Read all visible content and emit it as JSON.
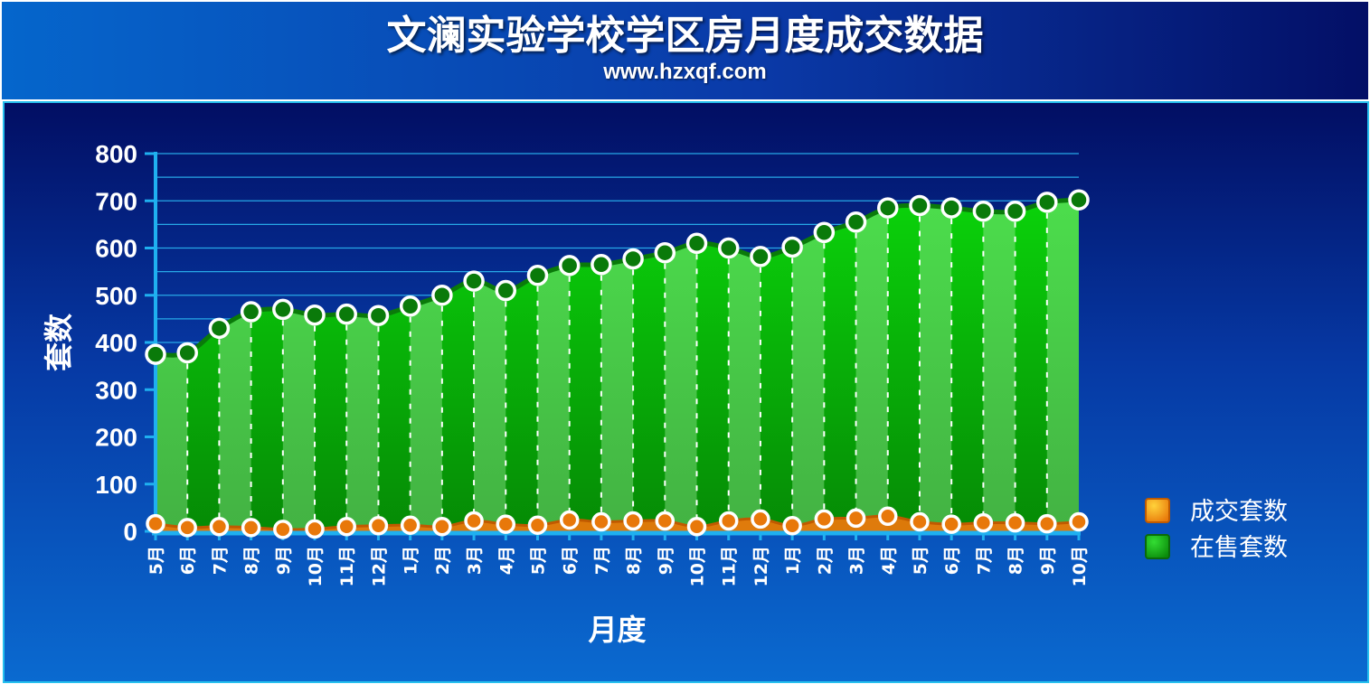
{
  "header": {
    "title": "文澜实验学校学区房月度成交数据",
    "subtitle": "www.hzxqf.com"
  },
  "colors": {
    "header_left": "#0566cc",
    "header_right": "#030f66",
    "frame_border": "#27c0ee",
    "grid": "#27a8e6",
    "area_green": "#14c814",
    "area_green_light": "#55ee55",
    "line_dark_green": "#0a7a0a",
    "sold_orange": "#e8780a",
    "text": "#ffffff"
  },
  "chart_data": {
    "type": "area",
    "xlabel": "月度",
    "ylabel": "套数",
    "ylim": [
      0,
      800
    ],
    "yticks": [
      0,
      100,
      200,
      300,
      400,
      500,
      600,
      700,
      800
    ],
    "grid": true,
    "legend_position": "right",
    "categories": [
      "5月",
      "6月",
      "7月",
      "8月",
      "9月",
      "10月",
      "11月",
      "12月",
      "1月",
      "2月",
      "3月",
      "4月",
      "5月",
      "6月",
      "7月",
      "8月",
      "9月",
      "10月",
      "11月",
      "12月",
      "1月",
      "2月",
      "3月",
      "4月",
      "5月",
      "6月",
      "7月",
      "8月",
      "9月",
      "10月"
    ],
    "series": [
      {
        "name": "成交套数",
        "color": "#e8780a",
        "values": [
          16,
          8,
          10,
          8,
          4,
          5,
          10,
          12,
          13,
          10,
          22,
          15,
          13,
          24,
          20,
          22,
          22,
          10,
          22,
          26,
          12,
          26,
          28,
          32,
          20,
          15,
          18,
          18,
          16,
          20
        ]
      },
      {
        "name": "在售套数",
        "color": "#14c814",
        "values": [
          375,
          378,
          430,
          465,
          470,
          458,
          460,
          457,
          477,
          500,
          530,
          510,
          542,
          563,
          565,
          577,
          590,
          610,
          600,
          582,
          602,
          633,
          655,
          685,
          690,
          685,
          678,
          678,
          697,
          702
        ]
      }
    ]
  }
}
